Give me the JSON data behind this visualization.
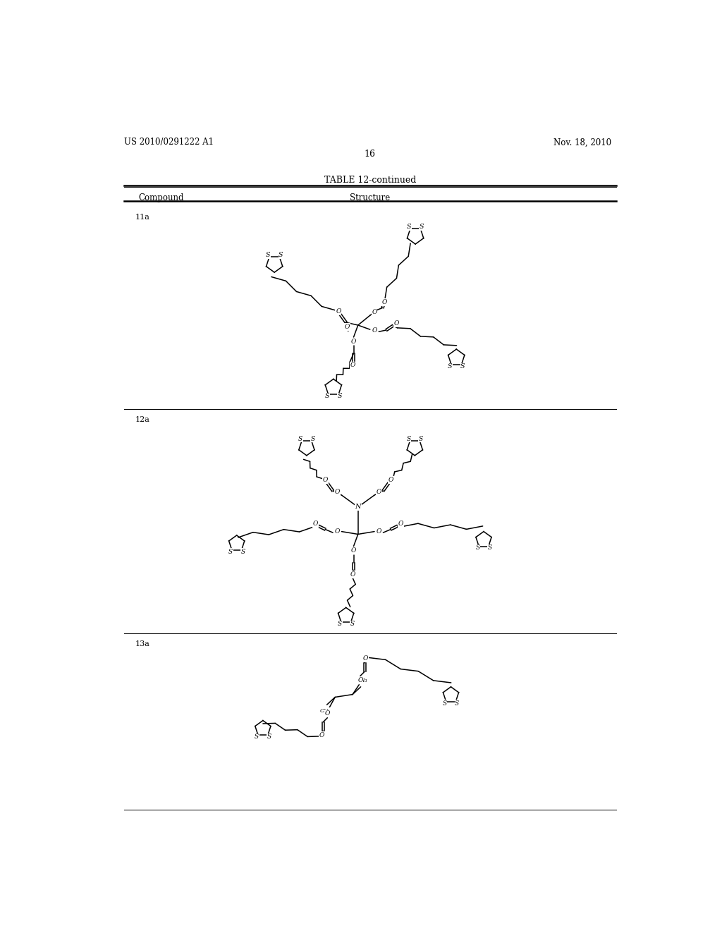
{
  "page_header_left": "US 2010/0291222 A1",
  "page_header_right": "Nov. 18, 2010",
  "page_number": "16",
  "table_title": "TABLE 12-continued",
  "col1_header": "Compound",
  "col2_header": "Structure",
  "bg_color": "#ffffff"
}
